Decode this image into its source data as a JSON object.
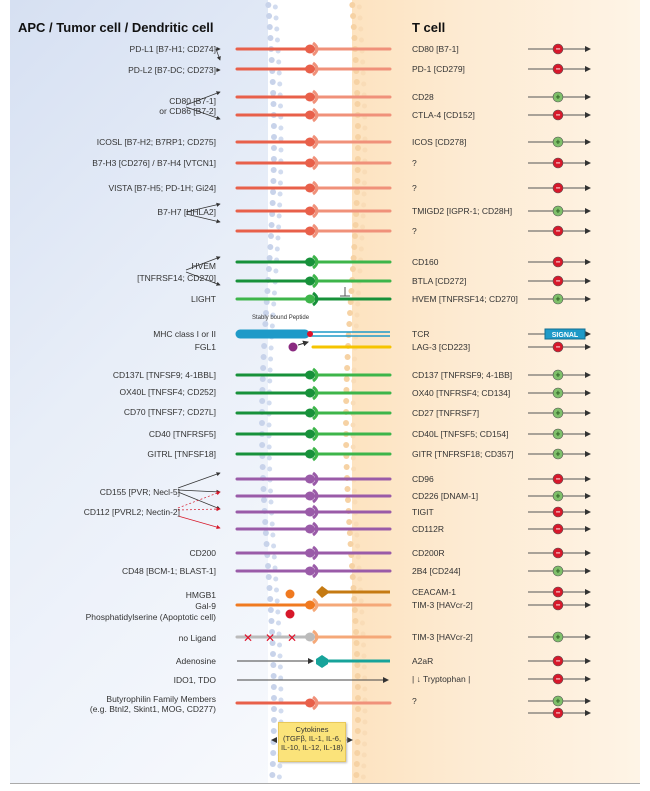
{
  "headers": {
    "left": "APC / Tumor cell / Dendritic cell",
    "right": "T cell"
  },
  "left_labels": [
    "PD-L1 [B7-H1; CD274]",
    "PD-L2 [B7-DC; CD273]",
    "CD80 [B7-1]",
    "or CD86 [B7-2]",
    "ICOSL [B7-H2; B7RP1; CD275]",
    "B7-H3 [CD276] / B7-H4 [VTCN1]",
    "VISTA [B7-H5; PD-1H; Gi24]",
    "B7-H7 [HHLA2]",
    "HVEM",
    "[TNFRSF14; CD270]",
    "LIGHT",
    "MHC class I or II",
    "FGL1",
    "CD137L [TNFSF9; 4-1BBL]",
    "OX40L [TNFSF4; CD252]",
    "CD70 [TNFSF7; CD27L]",
    "CD40 [TNFRSF5]",
    "GITRL [TNFSF18]",
    "CD155 [PVR; Necl-5]",
    "CD112 [PVRL2; Nectin-2]",
    "CD200",
    "CD48 [BCM-1; BLAST-1]",
    "HMGB1",
    "Gal-9",
    "Phosphatidylserine (Apoptotic cell)",
    "no Ligand",
    "Adenosine",
    "IDO1, TDO",
    "Butyrophilin Family Members",
    "(e.g. Btnl2, Skint1, MOG, CD277)"
  ],
  "peptide_label": "Stably bound Peptide",
  "cytokines": {
    "title": "Cytokines",
    "line1": "(TGFβ, IL-1, IL-6,",
    "line2": "IL-10, IL-12, IL-18)"
  },
  "signal_label": "SIGNAL",
  "right_rows": [
    {
      "label": "CD80 [B7-1]",
      "signal": "inhibitory"
    },
    {
      "label": "PD-1 [CD279]",
      "signal": "inhibitory"
    },
    {
      "label": "CD28",
      "signal": "stimulatory"
    },
    {
      "label": "CTLA-4 [CD152]",
      "signal": "inhibitory"
    },
    {
      "label": "ICOS [CD278]",
      "signal": "stimulatory"
    },
    {
      "label": "?",
      "signal": "inhibitory"
    },
    {
      "label": "?",
      "signal": "inhibitory"
    },
    {
      "label": "TMIGD2 [IGPR-1; CD28H]",
      "signal": "stimulatory"
    },
    {
      "label": "?",
      "signal": "inhibitory"
    },
    {
      "label": "CD160",
      "signal": "inhibitory"
    },
    {
      "label": "BTLA [CD272]",
      "signal": "inhibitory"
    },
    {
      "label": "HVEM [TNFRSF14; CD270]",
      "signal": "stimulatory"
    },
    {
      "label": "TCR",
      "signal": "signal"
    },
    {
      "label": "LAG-3 [CD223]",
      "signal": "inhibitory"
    },
    {
      "label": "CD137 [TNFRSF9; 4-1BB]",
      "signal": "stimulatory"
    },
    {
      "label": "OX40 [TNFRSF4; CD134]",
      "signal": "stimulatory"
    },
    {
      "label": "CD27 [TNFRSF7]",
      "signal": "stimulatory"
    },
    {
      "label": "CD40L [TNFSF5; CD154]",
      "signal": "stimulatory"
    },
    {
      "label": "GITR [TNFRSF18; CD357]",
      "signal": "stimulatory"
    },
    {
      "label": "CD96",
      "signal": "inhibitory"
    },
    {
      "label": "CD226 [DNAM-1]",
      "signal": "stimulatory"
    },
    {
      "label": "TIGIT",
      "signal": "inhibitory"
    },
    {
      "label": "CD112R",
      "signal": "inhibitory"
    },
    {
      "label": "CD200R",
      "signal": "inhibitory"
    },
    {
      "label": "2B4 [CD244]",
      "signal": "stimulatory"
    },
    {
      "label": "CEACAM-1",
      "signal": "inhibitory"
    },
    {
      "label": "TIM-3 [HAVcr-2]",
      "signal": "inhibitory"
    },
    {
      "label": "TIM-3 [HAVcr-2]",
      "signal": "stimulatory"
    },
    {
      "label": "A2aR",
      "signal": "inhibitory"
    },
    {
      "label": "| ↓ Tryptophan |",
      "signal": "inhibitory"
    },
    {
      "label": "?",
      "signal": "both"
    }
  ],
  "colors": {
    "b7_ligand": "#e8604a",
    "b7_receptor": "#f0917a",
    "tnf_dark": "#17913a",
    "tnf_light": "#3db54a",
    "nectin": "#9a5ba8",
    "mhc": "#1e9ac8",
    "lag3": "#f5c400",
    "tim3_ligand": "#f07a20",
    "tim3_receptor": "#f5a878",
    "ceacam": "#c57a12",
    "no_ligand": "#bbbbbb",
    "a2ar": "#17a39a",
    "inhibitory": "#d7182a",
    "stimulatory": "#7fc06a",
    "signal_box": "#1e9ac8"
  }
}
